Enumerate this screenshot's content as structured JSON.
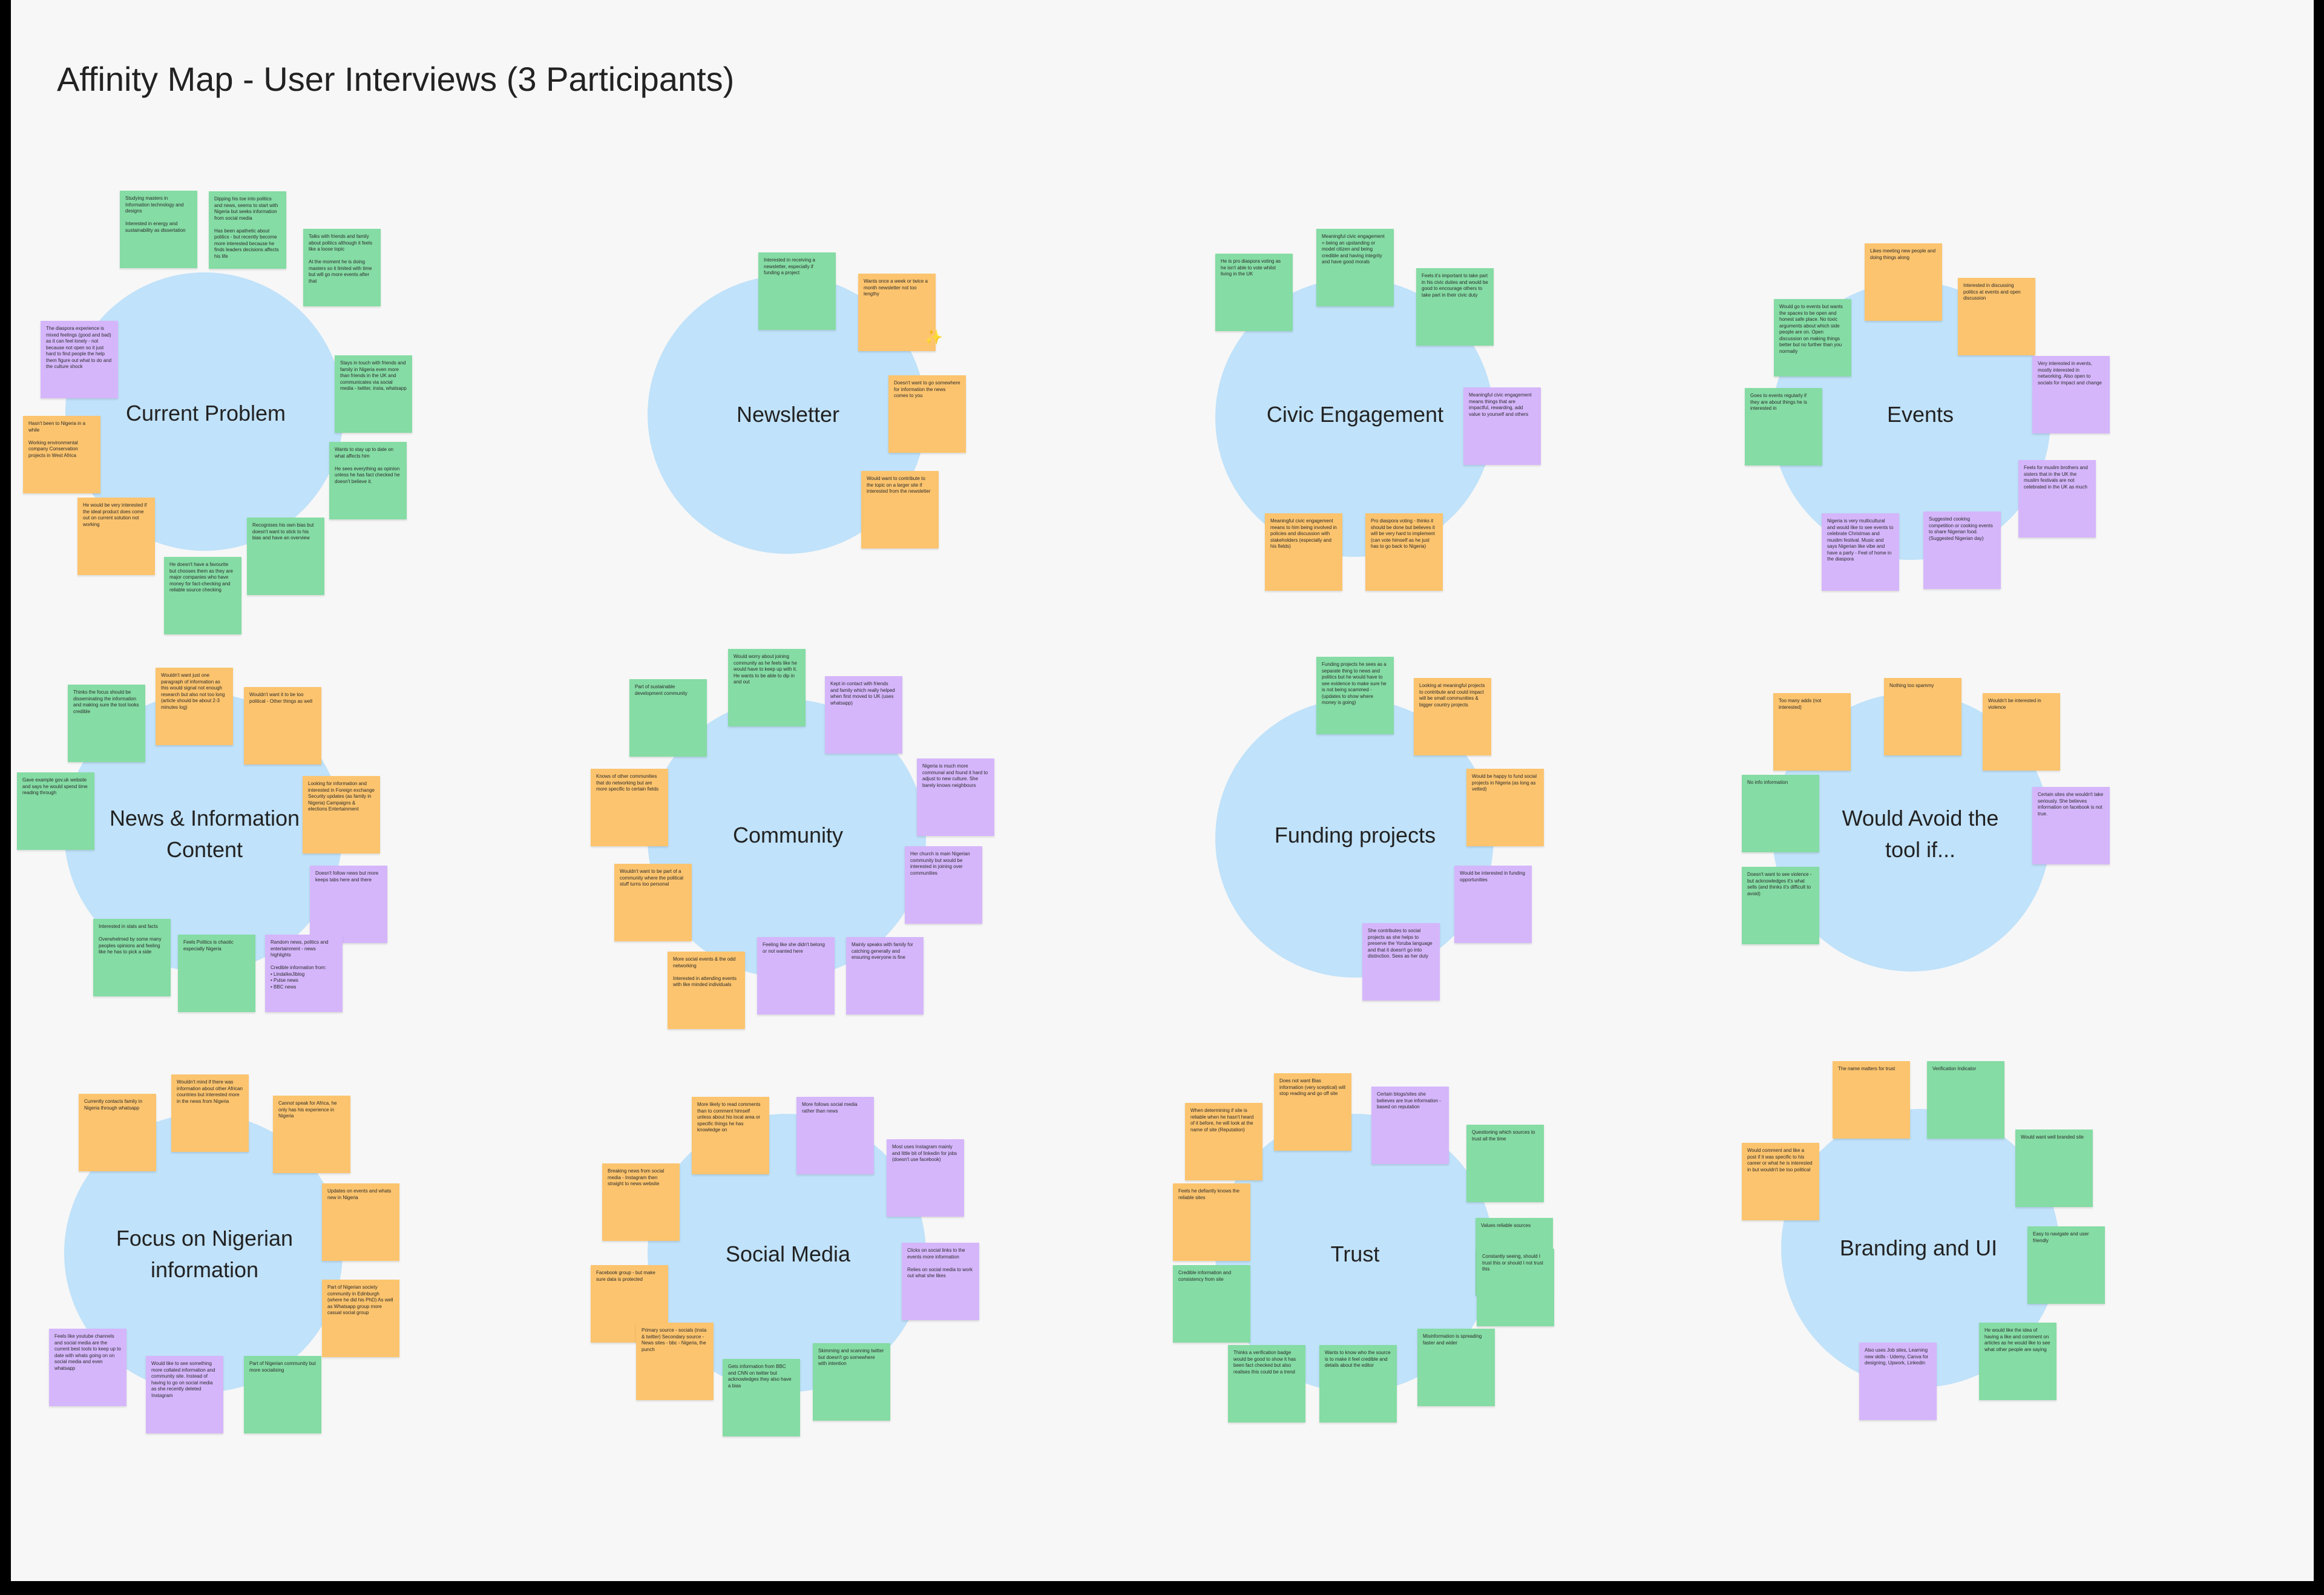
{
  "title": "Affinity Map - User Interviews (3 Participants)",
  "colors": {
    "canvas": "#f7f7f7",
    "cluster": "#c0e2fa",
    "green": "#85dca4",
    "orange": "#fcc46e",
    "purple": "#d5b6fb"
  },
  "clusters": [
    {
      "id": "current-problem",
      "label": "Current Problem",
      "notes": [
        {
          "color": "green",
          "text": "Studying masters in Information technology and designs\n\nInterested in energy and sustainability as dissertation"
        },
        {
          "color": "green",
          "text": "Dipping his toe into politics and news, seems to start with Nigeria but seeks information from social media\n\nHas been apathetic about politics - but recently become more interested because he finds leaders decisions affects his life"
        },
        {
          "color": "green",
          "text": "Talks with friends and family about politics although it feels like a loose topic\n\nAt the moment he is doing masters so it limited with time but will go more events after that"
        },
        {
          "color": "purple",
          "text": "The diaspora experience is mixed feelings (good and bad) as it can feel lonely - not because not open so it just hard to find people the help them figure out what to do and the culture shock"
        },
        {
          "color": "green",
          "text": "Stays in touch with friends and family in Nigeria even more than friends in the UK and communicates via social media - twitter, insta, whatsapp"
        },
        {
          "color": "orange",
          "text": "Hasn't been to Nigeria in a while\n\nWorking environmental company Conservation projects in West Africa"
        },
        {
          "color": "green",
          "text": "Wants to stay up to date on what affects him\n\nHe sees everything as opinion unless he has fact checked he doesn't believe it."
        },
        {
          "color": "orange",
          "text": "He would be very interested if the ideal product does come out on current solution not working"
        },
        {
          "color": "green",
          "text": "Recognises his own bias but doesn't want to stick to his bias and have an overview"
        },
        {
          "color": "green",
          "text": "He doesn't have a favourite but chooses them as they are major companies who have money for fact-checking and reliable source checking"
        }
      ]
    },
    {
      "id": "newsletter",
      "label": "Newsletter",
      "notes": [
        {
          "color": "green",
          "text": "Interested in receiving a newsletter, especially if funding a project"
        },
        {
          "color": "orange",
          "text": "Wants once a week or twice a month newsletter not too lengthy"
        },
        {
          "color": "orange",
          "text": "Doesn't want to go somewhere for information the news comes to you"
        },
        {
          "color": "orange",
          "text": "Would want to contribute to the topic on a larger site if interested from the newsletter"
        }
      ]
    },
    {
      "id": "civic-engagement",
      "label": "Civic Engagement",
      "notes": [
        {
          "color": "green",
          "text": "He is pro diaspora voting as he isn't able to vote whilst living in the UK"
        },
        {
          "color": "green",
          "text": "Meaningful civic engagement = being an upstanding or model citizen and being credible and having integrity and have good morals"
        },
        {
          "color": "green",
          "text": "Feels it's important to take part in his civic duties and would be good to encourage others to take part in their civic duty"
        },
        {
          "color": "purple",
          "text": "Meaningful civic engagement means things that are impactful, rewarding, add value to yourself and others"
        },
        {
          "color": "orange",
          "text": "Meaningful civic engagement means to him being involved in policies and discussion with stakeholders (especially and his fields)"
        },
        {
          "color": "orange",
          "text": "Pro diaspora voting - thinks it should be done but believes it will be very hard to implement (can vote himself as he just has to go back to Nigeria)"
        }
      ]
    },
    {
      "id": "events",
      "label": "Events",
      "notes": [
        {
          "color": "orange",
          "text": "Likes meeting new people and doing things along"
        },
        {
          "color": "orange",
          "text": "Interested in discussing politics at events and open discussion"
        },
        {
          "color": "green",
          "text": "Would go to events but wants the spaces to be open and honest safe place. No toxic arguments about which side people are on. Open discussion on making things better but no further than you normally"
        },
        {
          "color": "purple",
          "text": "Very interested in events, mostly interested in networking. Also open to socials for impact and change"
        },
        {
          "color": "green",
          "text": "Goes to events regularly if they are about things he is interested in"
        },
        {
          "color": "purple",
          "text": "Feels for muslim brothers and sisters that in the UK the muslim festivals are not celebrated in the UK as much"
        },
        {
          "color": "purple",
          "text": "Nigeria is very multicultural and would like to see events to celebrate Christmas and muslim festival. Music and says Nigerian like vibe and have a party - Feel of home in the diaspora"
        },
        {
          "color": "purple",
          "text": "Suggested cooking competition or cooking events to share Nigerian food. (Suggested Nigerian day)"
        }
      ]
    },
    {
      "id": "news-information",
      "label": "News & Information\nContent",
      "notes": [
        {
          "color": "green",
          "text": "Thinks the focus should be disseminating the information and making sure the tool looks credible"
        },
        {
          "color": "orange",
          "text": "Wouldn't want just one paragraph of information as this would signal not enough research but also not too long (article should be about 2-3 minutes log)"
        },
        {
          "color": "orange",
          "text": "Wouldn't want it to be too political - Other things as well"
        },
        {
          "color": "green",
          "text": "Gave example gov.uk website and says he would spend time reading through"
        },
        {
          "color": "orange",
          "text": "Looking for information and interested in Foreign exchange Security updates (as family in Nigeria) Campaigns & elections Entertainment"
        },
        {
          "color": "purple",
          "text": "Doesn't follow news but more keeps tabs here and there"
        },
        {
          "color": "green",
          "text": "Interested in stats and facts\n\nOverwhelmed by some many peoples opinions and feeling like he has to pick a side"
        },
        {
          "color": "green",
          "text": "Feels Politics is chaotic especially Nigeria"
        },
        {
          "color": "purple",
          "text": "Random news, politics and entertainment - news highlights\n\nCredible information from:\n• LindaIkeJiblog\n• Pulse news\n• BBC news"
        }
      ]
    },
    {
      "id": "community",
      "label": "Community",
      "notes": [
        {
          "color": "green",
          "text": "Would worry about joining community as he feels like he would have to keep up with it. He wants to be able to dip in and out"
        },
        {
          "color": "green",
          "text": "Part of sustainable development community"
        },
        {
          "color": "purple",
          "text": "Kept in contact with friends and family which really helped when first moved to UK (uses whatsapp)"
        },
        {
          "color": "orange",
          "text": "Knows of other communities that do networking but are more specific to certain fields"
        },
        {
          "color": "purple",
          "text": "Nigeria is much more communal and found it hard to adjust to new culture. She barely knows neighbours"
        },
        {
          "color": "orange",
          "text": "Wouldn't want to be part of a community where the political stuff turns too personal"
        },
        {
          "color": "purple",
          "text": "Her church is main Nigerian community but would be interested in joining over communities"
        },
        {
          "color": "orange",
          "text": "More social events & the odd networking\n\nInterested in attending events with like minded individuals"
        },
        {
          "color": "purple",
          "text": "Feeling like she didn't belong or not wanted here"
        },
        {
          "color": "purple",
          "text": "Mainly speaks with family for catching generally and ensuring everyone is fine"
        }
      ]
    },
    {
      "id": "funding-projects",
      "label": "Funding projects",
      "notes": [
        {
          "color": "green",
          "text": "Funding projects he sees as a separate thing to news and politics but he would have to see evidence to make sure he is not being scammed - (updates to show where money is going)"
        },
        {
          "color": "orange",
          "text": "Looking at meaningful projects to contribute and could impact will be small communities & bigger country projects"
        },
        {
          "color": "orange",
          "text": "Would be happy to fund social projects in Nigeria (as long as vetted)"
        },
        {
          "color": "purple",
          "text": "Would be interested in funding opportunities"
        },
        {
          "color": "purple",
          "text": "She contributes to social projects as she helps to preserve the Yoruba language and that it doesn't go into distinction. Sees as her duty"
        }
      ]
    },
    {
      "id": "would-avoid",
      "label": "Would Avoid the\ntool if...",
      "notes": [
        {
          "color": "orange",
          "text": "Too many adds (not interested)"
        },
        {
          "color": "orange",
          "text": "Nothing too spammy"
        },
        {
          "color": "orange",
          "text": "Wouldn't be interested in violence"
        },
        {
          "color": "green",
          "text": "No info information"
        },
        {
          "color": "purple",
          "text": "Certain sites she wouldn't take seriously. She believes information on facebook is not true."
        },
        {
          "color": "green",
          "text": "Doesn't want to see violence - but acknowledges it's what sells (and thinks it's difficult to avoid)"
        }
      ]
    },
    {
      "id": "focus-nigerian",
      "label": "Focus on Nigerian\ninformation",
      "notes": [
        {
          "color": "orange",
          "text": "Currently contacts family in Nigeria through whatsapp"
        },
        {
          "color": "orange",
          "text": "Wouldn't mind if there was information about other African countries but interested more in the news from Nigeria"
        },
        {
          "color": "orange",
          "text": "Cannot speak for Africa, he only has his experience in Nigeria"
        },
        {
          "color": "orange",
          "text": "Updates on events and whats new in Nigeria"
        },
        {
          "color": "orange",
          "text": "Part of Nigerian society community in Edinburgh (where he did his PhD) As well as Whatsapp group more casual social group"
        },
        {
          "color": "purple",
          "text": "Feels like youtube channels and social media are the current best tools to keep up to date with whats going on on social media and even whatsapp"
        },
        {
          "color": "purple",
          "text": "Would like to see something more collated information and community site. Instead of having to go on social media as she recently deleted Instagram"
        },
        {
          "color": "green",
          "text": "Part of Nigerian community but more socialising"
        }
      ]
    },
    {
      "id": "social-media",
      "label": "Social Media",
      "notes": [
        {
          "color": "orange",
          "text": "More likely to read comments than to comment himself unless about his local area or specific things he has knowledge on"
        },
        {
          "color": "purple",
          "text": "More follows social media rather than news"
        },
        {
          "color": "purple",
          "text": "Most uses Instagram mainly and little bit of linkedin for jobs (doesn't use facebook)"
        },
        {
          "color": "orange",
          "text": "Breaking news from social media - Instagram then straight to news website"
        },
        {
          "color": "purple",
          "text": "Clicks on social links to the events more information\n\nRelies on social media to work out what she likes"
        },
        {
          "color": "orange",
          "text": "Facebook group - but make sure data is protected"
        },
        {
          "color": "orange",
          "text": "Primary source - socials (insta & twitter) Secondary source - News sites - bbc - Nigeria, the punch"
        },
        {
          "color": "green",
          "text": "Gets information from BBC and CNN on twitter but acknowledges they also have a bias"
        },
        {
          "color": "green",
          "text": "Skimming and scanning twitter but doesn't go somewhere with intention"
        }
      ]
    },
    {
      "id": "trust",
      "label": "Trust",
      "notes": [
        {
          "color": "orange",
          "text": "When determining if site is reliable when he hasn't heard of it before, he will look at the name of site (Reputation)"
        },
        {
          "color": "orange",
          "text": "Does not want Bias information (very sceptical) will stop reading and go off site"
        },
        {
          "color": "purple",
          "text": "Certain blogs/sites she believes are true information - based on reputation"
        },
        {
          "color": "green",
          "text": "Questioning which sources to trust all the time"
        },
        {
          "color": "orange",
          "text": "Feels he defiantly knows the reliable sites"
        },
        {
          "color": "green",
          "text": "Values reliable sources"
        },
        {
          "color": "green",
          "text": "Constantly seeing, should I trust this or should I not trust this"
        },
        {
          "color": "green",
          "text": "Credible information and consistency from site"
        },
        {
          "color": "green",
          "text": "Thinks a verification badge would be good to show it has been fact checked but also realises this could be a trend"
        },
        {
          "color": "green",
          "text": "Wants to know who the source is to make it feel credible and details about the editor"
        },
        {
          "color": "green",
          "text": "Misinformation is spreading faster and wider"
        }
      ]
    },
    {
      "id": "branding-ui",
      "label": "Branding and UI",
      "notes": [
        {
          "color": "orange",
          "text": "The name matters for trust"
        },
        {
          "color": "green",
          "text": "Verification Indicator"
        },
        {
          "color": "orange",
          "text": "Would comment and like a post if it was specific to his career or what he is interested in but wouldn't be too political"
        },
        {
          "color": "green",
          "text": "Would want well branded site"
        },
        {
          "color": "green",
          "text": "Easy to navigate and user friendly"
        },
        {
          "color": "purple",
          "text": "Also uses Job sites, Learning new skills - Udemy, Canva for designing, Upwork, Linkedin"
        },
        {
          "color": "green",
          "text": "He would like the idea of having a like and comment on articles as he would like to see what other people are saying"
        }
      ]
    }
  ]
}
